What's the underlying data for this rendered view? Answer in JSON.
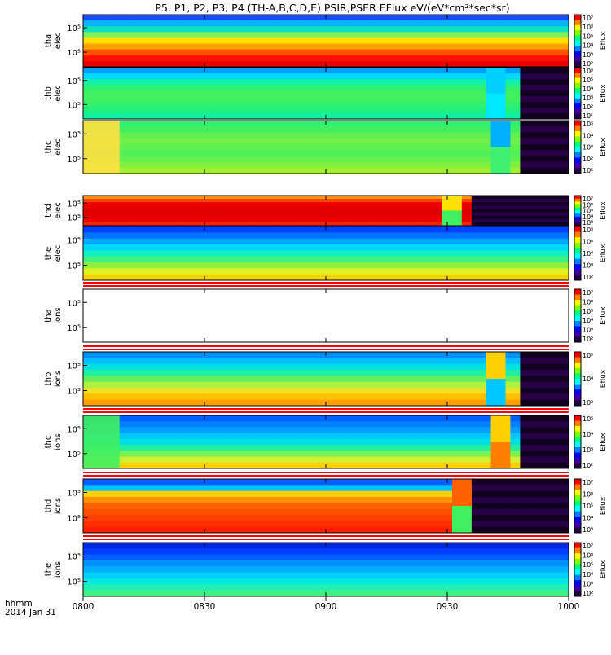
{
  "title": "P5, P1, P2, P3, P4 (TH-A,B,C,D,E) PSIR,PSER EFlux eV/(eV*cm²*sec*sr)",
  "xaxis": {
    "unit_label": "hhmm",
    "date_label": "2014 Jan 31",
    "ticks": [
      "0800",
      "0830",
      "0900",
      "0930",
      "1000"
    ]
  },
  "colorbar_label": "Eflux",
  "chart_data": [
    {
      "type": "heatmap",
      "probe": "tha",
      "species": "elec",
      "ylabel_1": "tha",
      "ylabel_2": "elec",
      "yticks": [
        "10⁵",
        "10⁵"
      ],
      "cbar_ticks": [
        "10⁷",
        "10⁶",
        "10⁵",
        "10⁴",
        "10³",
        "10²"
      ],
      "rows": [
        "#0a6cff",
        "#00c8ff",
        "#22f0a0",
        "#a8ff30",
        "#ffd400",
        "#ff8a00",
        "#ff3000",
        "#f00000",
        "#e00000"
      ],
      "segments": [
        {
          "x0": 0,
          "x1": 120,
          "shade": 0
        }
      ],
      "heights": [
        0.08,
        0.08,
        0.1,
        0.1,
        0.12,
        0.12,
        0.14,
        0.14,
        0.12
      ]
    },
    {
      "type": "heatmap",
      "probe": "thb",
      "species": "elec",
      "ylabel_1": "thb",
      "ylabel_2": "elec",
      "yticks": [
        "10⁵",
        "10⁵"
      ],
      "cbar_ticks": [
        "10⁶",
        "10⁵",
        "10⁴",
        "10³",
        "10²",
        "10¹"
      ]
    },
    {
      "type": "heatmap",
      "probe": "thc",
      "species": "elec",
      "ylabel_1": "thc",
      "ylabel_2": "elec",
      "yticks": [
        "10⁵",
        "10⁵"
      ],
      "cbar_ticks": [
        "10⁵",
        "10⁴",
        "10³",
        "10²",
        "10¹"
      ]
    },
    {
      "type": "heatmap",
      "probe": "thd",
      "species": "elec",
      "ylabel_1": "thd",
      "ylabel_2": "elec",
      "yticks": [
        "10⁵",
        "10⁵"
      ],
      "cbar_ticks": [
        "10⁷",
        "10⁶",
        "10⁵",
        "10⁴",
        "10³"
      ]
    },
    {
      "type": "heatmap",
      "probe": "the",
      "species": "elec",
      "ylabel_1": "the",
      "ylabel_2": "elec",
      "yticks": [
        "10⁵",
        "10⁵"
      ],
      "cbar_ticks": [
        "10⁶",
        "10⁵",
        "10⁴",
        "10³",
        "10²"
      ]
    },
    {
      "type": "heatmap",
      "probe": "tha",
      "species": "ions",
      "ylabel_1": "tha",
      "ylabel_2": "ions",
      "yticks": [
        "10⁵",
        "10⁵"
      ],
      "cbar_ticks": [
        "10⁷",
        "10⁶",
        "10⁵",
        "10⁴",
        "10³",
        "10²"
      ]
    },
    {
      "type": "heatmap",
      "probe": "thb",
      "species": "ions",
      "ylabel_1": "thb",
      "ylabel_2": "ions",
      "yticks": [
        "10⁵",
        "10³"
      ],
      "cbar_ticks": [
        "10⁶",
        "10⁴",
        "10²"
      ]
    },
    {
      "type": "heatmap",
      "probe": "thc",
      "species": "ions",
      "ylabel_1": "thc",
      "ylabel_2": "ions",
      "yticks": [
        "10⁵",
        "10⁵"
      ],
      "cbar_ticks": [
        "10⁵",
        "10⁴",
        "10³",
        "10²"
      ]
    },
    {
      "type": "heatmap",
      "probe": "thd",
      "species": "ions",
      "ylabel_1": "thd",
      "ylabel_2": "ions",
      "yticks": [
        "10⁵",
        "10⁵"
      ],
      "cbar_ticks": [
        "10⁷",
        "10⁶",
        "10⁵",
        "10⁴",
        "10³"
      ]
    },
    {
      "type": "heatmap",
      "probe": "the",
      "species": "ions",
      "ylabel_1": "the",
      "ylabel_2": "ions",
      "yticks": [
        "10⁵",
        "10⁵"
      ],
      "cbar_ticks": [
        "10⁷",
        "10⁶",
        "10⁵",
        "10⁴",
        "10³",
        "10²"
      ]
    }
  ]
}
